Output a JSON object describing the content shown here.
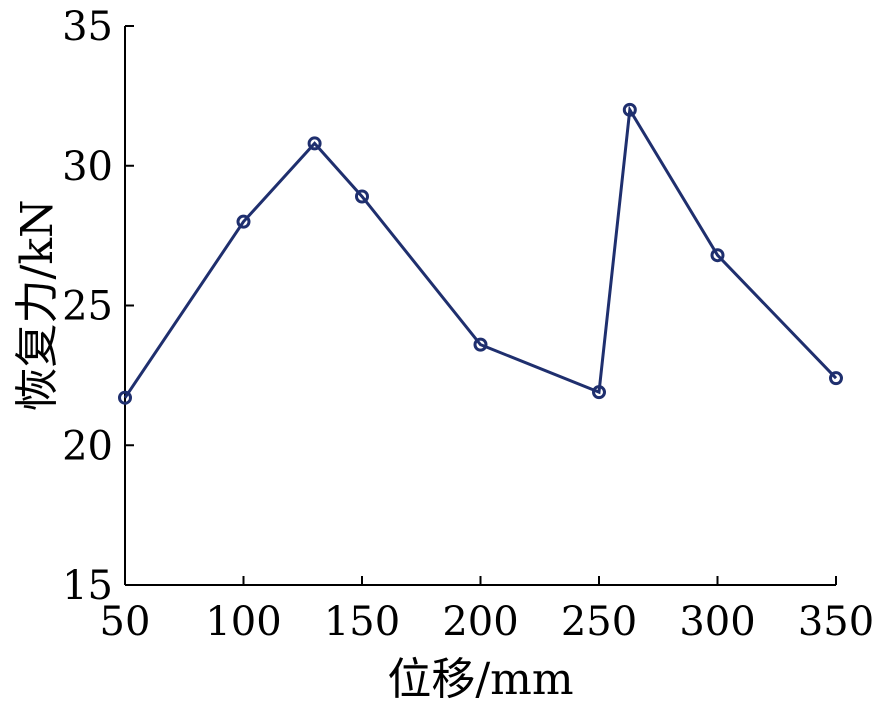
{
  "chart_data": {
    "type": "line",
    "title": "",
    "xlabel": "位移/mm",
    "ylabel": "恢复力/kN",
    "xlim": [
      50,
      350
    ],
    "ylim": [
      15,
      35
    ],
    "xticks": [
      50,
      100,
      150,
      200,
      250,
      300,
      350
    ],
    "yticks": [
      15,
      20,
      25,
      30,
      35
    ],
    "xtick_labels": [
      "50",
      "100",
      "150",
      "200",
      "250",
      "300",
      "350"
    ],
    "ytick_labels": [
      "15",
      "20",
      "25",
      "30",
      "35"
    ],
    "grid": false,
    "legend": "none",
    "series": [
      {
        "color": "#1f2f6e",
        "marker": "circle",
        "x": [
          50,
          100,
          130,
          150,
          200,
          250,
          263,
          300,
          350
        ],
        "y": [
          21.7,
          28.0,
          30.8,
          28.9,
          23.6,
          21.9,
          32.0,
          26.8,
          22.4
        ]
      }
    ]
  }
}
